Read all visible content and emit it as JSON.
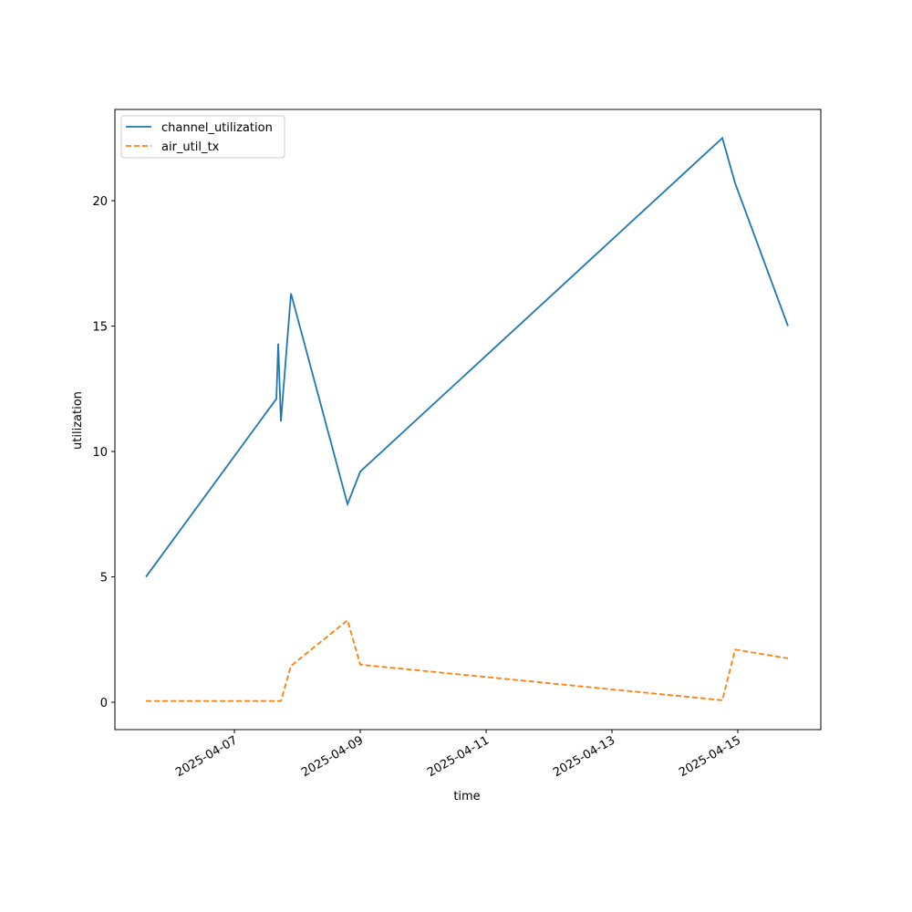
{
  "chart_data": {
    "type": "line",
    "x_label": "time",
    "y_label": "utilization",
    "x": [
      "2025-04-05 14:15",
      "2025-04-07 16:00",
      "2025-04-07 16:42",
      "2025-04-07 17:44",
      "2025-04-07 21:34",
      "2025-04-08 19:08",
      "2025-04-09 00:00",
      "2025-04-14 18:06",
      "2025-04-14 22:58",
      "2025-04-15 19:08"
    ],
    "series": [
      {
        "name": "channel_utilization",
        "color": "#1f77b4",
        "linestyle": "solid",
        "values": [
          5.0,
          12.1,
          14.3,
          11.2,
          16.3,
          7.9,
          9.2,
          22.5,
          20.7,
          15.0
        ]
      },
      {
        "name": "air_util_tx",
        "color": "#ff7f0e",
        "linestyle": "dashed",
        "values": [
          0.05,
          0.05,
          0.05,
          0.05,
          1.45,
          3.27,
          1.5,
          0.08,
          2.1,
          1.75
        ]
      }
    ],
    "xlim": [
      "2025-04-05 02:25",
      "2025-04-16 07:39"
    ],
    "xticks": [
      "2025-04-07",
      "2025-04-09",
      "2025-04-11",
      "2025-04-13",
      "2025-04-15"
    ],
    "ylim": [
      -1.09,
      23.64
    ],
    "yticks": [
      0,
      5,
      10,
      15,
      20
    ],
    "grid": false,
    "legend": "upper left"
  }
}
